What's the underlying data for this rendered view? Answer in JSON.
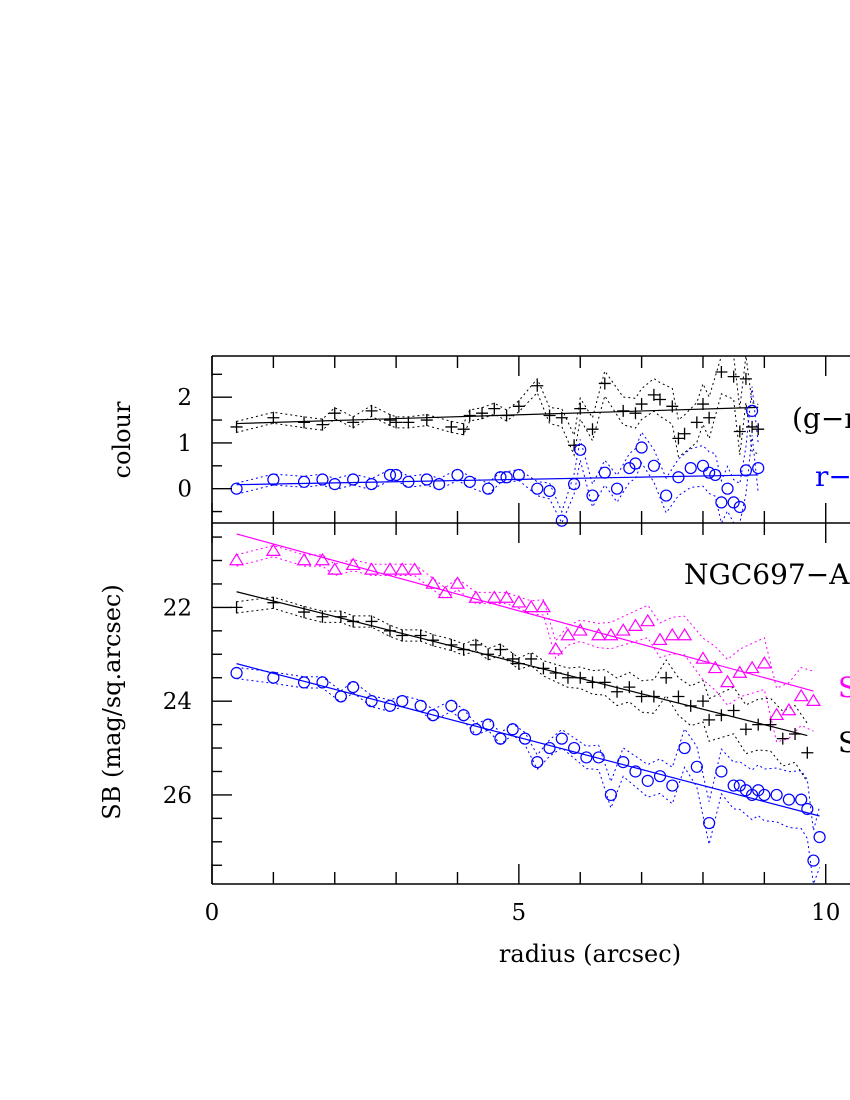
{
  "chart_data": [
    {
      "type": "scatter",
      "panel": "colour",
      "ylabel": "colour",
      "xlabel": "",
      "xlim": [
        0,
        10.2
      ],
      "ylim": [
        -0.75,
        2.9
      ],
      "yticks": [
        0,
        1,
        2
      ],
      "grid": false,
      "annotations": [
        {
          "text": "(g−r",
          "color": "#000000",
          "at": [
            9.0,
            1.5
          ]
        },
        {
          "text": "r−",
          "color": "#0000ff",
          "at": [
            9.6,
            0.3
          ]
        }
      ],
      "series": [
        {
          "name": "g−r",
          "marker": "plus",
          "color": "#000000",
          "x": [
            0.4,
            1.0,
            1.5,
            1.8,
            2.0,
            2.3,
            2.6,
            2.9,
            3.0,
            3.2,
            3.5,
            3.9,
            4.1,
            4.2,
            4.4,
            4.6,
            4.8,
            5.0,
            5.3,
            5.5,
            5.7,
            5.9,
            6.0,
            6.2,
            6.4,
            6.7,
            6.9,
            7.0,
            7.2,
            7.3,
            7.5,
            7.6,
            7.7,
            7.9,
            8.0,
            8.1,
            8.3,
            8.5,
            8.6,
            8.7,
            8.8,
            8.9
          ],
          "y": [
            1.35,
            1.55,
            1.45,
            1.4,
            1.65,
            1.45,
            1.7,
            1.5,
            1.45,
            1.45,
            1.5,
            1.35,
            1.3,
            1.6,
            1.65,
            1.75,
            1.6,
            1.8,
            2.25,
            1.6,
            1.55,
            0.95,
            1.75,
            1.3,
            2.3,
            1.7,
            1.65,
            1.85,
            2.05,
            1.95,
            1.8,
            1.1,
            1.2,
            1.45,
            1.85,
            1.55,
            2.55,
            2.45,
            1.25,
            2.4,
            1.35,
            1.3
          ]
        },
        {
          "name": "r−i",
          "marker": "circle",
          "color": "#0000ff",
          "x": [
            0.4,
            1.0,
            1.5,
            1.8,
            2.0,
            2.3,
            2.6,
            2.9,
            3.0,
            3.2,
            3.5,
            3.7,
            4.0,
            4.2,
            4.5,
            4.7,
            4.8,
            5.0,
            5.3,
            5.5,
            5.7,
            5.9,
            6.0,
            6.2,
            6.4,
            6.6,
            6.8,
            6.9,
            7.0,
            7.2,
            7.4,
            7.6,
            7.8,
            8.0,
            8.1,
            8.2,
            8.3,
            8.4,
            8.5,
            8.6,
            8.7,
            8.8,
            8.9
          ],
          "y": [
            0.0,
            0.2,
            0.15,
            0.2,
            0.1,
            0.2,
            0.1,
            0.3,
            0.3,
            0.15,
            0.2,
            0.1,
            0.3,
            0.15,
            0.0,
            0.25,
            0.25,
            0.3,
            0.0,
            -0.05,
            -0.7,
            0.1,
            0.85,
            -0.15,
            0.35,
            0.0,
            0.45,
            0.55,
            0.9,
            0.5,
            -0.15,
            0.25,
            0.45,
            0.5,
            0.35,
            0.3,
            -0.3,
            0.0,
            -0.3,
            -0.4,
            0.4,
            1.7,
            0.45
          ]
        }
      ]
    },
    {
      "type": "scatter",
      "panel": "surface brightness",
      "title": "NGC697−A",
      "xlabel": "radius (arcsec)",
      "ylabel": "SB (mag/sq.arcsec)",
      "xlim": [
        0,
        10.2
      ],
      "ylim": [
        27.9,
        20.2
      ],
      "xticks": [
        0,
        5,
        10
      ],
      "xtick_labels": [
        "0",
        "5",
        "10"
      ],
      "yticks": [
        22,
        24,
        26
      ],
      "grid": false,
      "annotations": [
        {
          "text": "S",
          "color": "#ff00ff",
          "at": [
            10.05,
            23.7
          ]
        },
        {
          "text": "S",
          "color": "#000000",
          "at": [
            10.05,
            25.0
          ]
        }
      ],
      "series": [
        {
          "name": "g",
          "marker": "triangle",
          "color": "#ff00ff",
          "x": [
            0.4,
            1.0,
            1.5,
            1.8,
            2.0,
            2.3,
            2.6,
            2.9,
            3.1,
            3.3,
            3.6,
            3.8,
            4.0,
            4.3,
            4.6,
            4.8,
            5.0,
            5.2,
            5.4,
            5.6,
            5.8,
            6.0,
            6.3,
            6.5,
            6.7,
            6.9,
            7.1,
            7.3,
            7.5,
            7.7,
            8.0,
            8.2,
            8.4,
            8.6,
            8.8,
            9.0,
            9.2,
            9.4,
            9.6,
            9.8
          ],
          "y": [
            21.0,
            20.8,
            21.0,
            21.0,
            21.2,
            21.1,
            21.2,
            21.2,
            21.2,
            21.2,
            21.5,
            21.7,
            21.5,
            21.8,
            21.8,
            21.8,
            21.9,
            22.0,
            22.0,
            22.9,
            22.6,
            22.5,
            22.6,
            22.6,
            22.5,
            22.4,
            22.3,
            22.7,
            22.6,
            22.6,
            23.1,
            23.3,
            23.6,
            23.4,
            23.3,
            23.2,
            24.3,
            24.2,
            23.9,
            24.0
          ]
        },
        {
          "name": "r",
          "marker": "plus",
          "color": "#000000",
          "x": [
            0.4,
            1.0,
            1.5,
            1.8,
            2.1,
            2.3,
            2.6,
            2.9,
            3.1,
            3.4,
            3.6,
            3.9,
            4.1,
            4.3,
            4.5,
            4.7,
            4.9,
            5.0,
            5.2,
            5.4,
            5.6,
            5.8,
            6.0,
            6.2,
            6.4,
            6.6,
            6.8,
            7.0,
            7.2,
            7.4,
            7.6,
            7.8,
            8.0,
            8.1,
            8.3,
            8.5,
            8.7,
            8.9,
            9.1,
            9.3,
            9.5,
            9.7
          ],
          "y": [
            22.0,
            21.9,
            22.1,
            22.2,
            22.2,
            22.3,
            22.3,
            22.5,
            22.6,
            22.6,
            22.7,
            22.8,
            22.9,
            22.8,
            23.0,
            22.9,
            23.1,
            23.2,
            23.1,
            23.3,
            23.4,
            23.5,
            23.5,
            23.6,
            23.6,
            23.8,
            23.7,
            23.9,
            23.9,
            23.5,
            23.9,
            24.1,
            24.0,
            24.4,
            24.3,
            24.2,
            24.6,
            24.5,
            24.5,
            24.8,
            24.7,
            25.1
          ]
        },
        {
          "name": "i",
          "marker": "circle",
          "color": "#0000ff",
          "x": [
            0.4,
            1.0,
            1.5,
            1.8,
            2.1,
            2.3,
            2.6,
            2.9,
            3.1,
            3.4,
            3.6,
            3.9,
            4.1,
            4.3,
            4.5,
            4.7,
            4.9,
            5.1,
            5.3,
            5.5,
            5.7,
            5.9,
            6.1,
            6.3,
            6.5,
            6.7,
            6.9,
            7.1,
            7.3,
            7.5,
            7.7,
            7.9,
            8.1,
            8.3,
            8.5,
            8.6,
            8.7,
            8.8,
            8.9,
            9.0,
            9.2,
            9.4,
            9.6,
            9.7,
            9.8,
            9.9
          ],
          "y": [
            23.4,
            23.5,
            23.6,
            23.6,
            23.9,
            23.7,
            24.0,
            24.1,
            24.0,
            24.1,
            24.3,
            24.1,
            24.3,
            24.6,
            24.5,
            24.8,
            24.6,
            24.8,
            25.3,
            25.0,
            24.8,
            25.0,
            25.2,
            25.2,
            26.0,
            25.3,
            25.5,
            25.7,
            25.6,
            25.8,
            25.0,
            25.4,
            26.6,
            25.5,
            25.8,
            25.8,
            25.9,
            26.0,
            25.9,
            26.0,
            26.0,
            26.1,
            26.1,
            26.3,
            27.4,
            26.9
          ]
        }
      ]
    }
  ]
}
